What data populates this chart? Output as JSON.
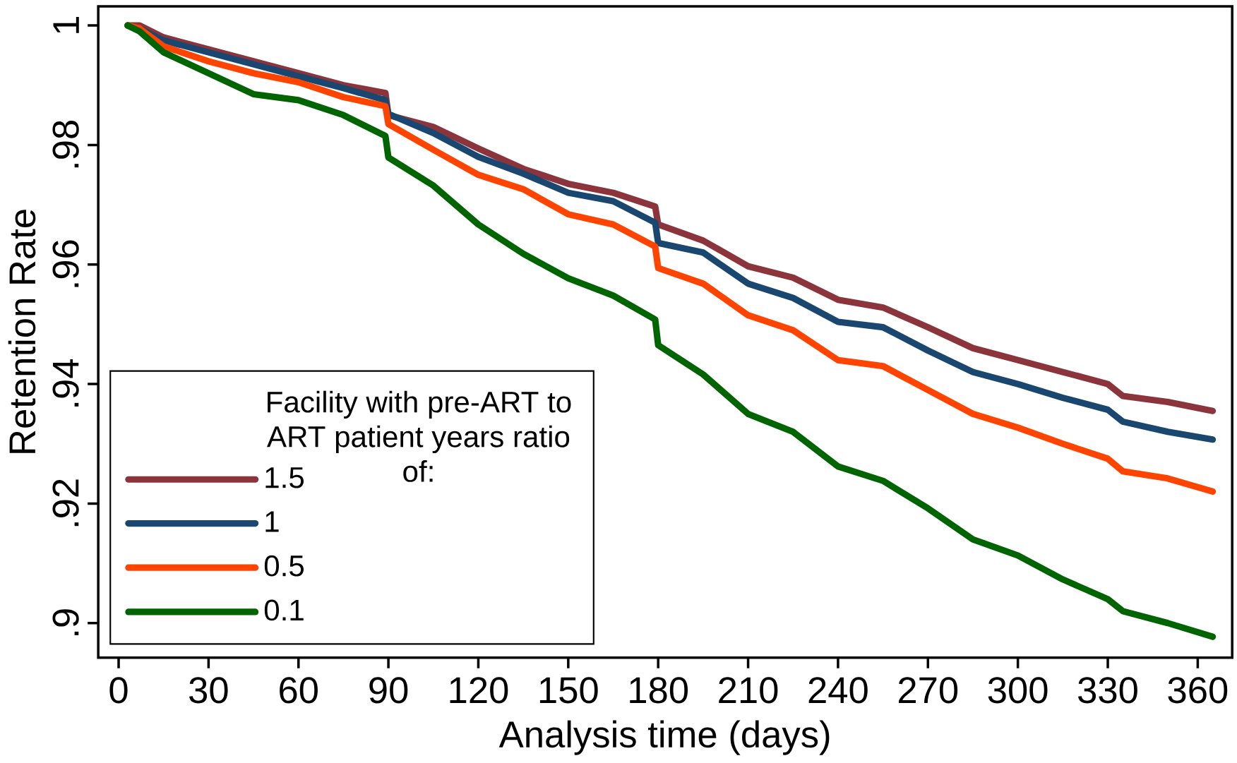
{
  "chart_data": {
    "type": "line",
    "xlabel": "Analysis time (days)",
    "ylabel": "Retention Rate",
    "legend_title": "Facility with pre-ART to ART patient years ratio of:",
    "legend": "bottom left",
    "grid": false,
    "marker": "none",
    "line_style": "solid",
    "x": [
      3,
      7,
      15,
      30,
      45,
      60,
      75,
      89,
      90,
      105,
      120,
      135,
      150,
      165,
      179,
      180,
      195,
      210,
      225,
      240,
      255,
      270,
      285,
      300,
      315,
      330,
      335,
      350,
      365
    ],
    "xlim": [
      -6.8,
      371.5
    ],
    "ylim": [
      0.8942,
      1.0032
    ],
    "xticks": [
      0,
      30,
      60,
      90,
      120,
      150,
      180,
      210,
      240,
      270,
      300,
      330,
      360
    ],
    "yticks": [
      {
        "value": 0.9,
        "label": ".9"
      },
      {
        "value": 0.92,
        "label": ".92"
      },
      {
        "value": 0.94,
        "label": ".94"
      },
      {
        "value": 0.96,
        "label": ".96"
      },
      {
        "value": 0.98,
        "label": ".98"
      },
      1
    ],
    "series": [
      {
        "name": "1.5",
        "color": "#8b343b",
        "values": [
          1.0,
          1.0,
          0.998,
          0.996,
          0.994,
          0.992,
          0.99,
          0.9887,
          0.985,
          0.983,
          0.9794,
          0.976,
          0.9735,
          0.972,
          0.9697,
          0.9667,
          0.964,
          0.9597,
          0.9578,
          0.9541,
          0.9528,
          0.9495,
          0.946,
          0.944,
          0.942,
          0.94,
          0.938,
          0.937,
          0.9355
        ]
      },
      {
        "name": "1",
        "color": "#1a476f",
        "values": [
          1.0,
          0.9995,
          0.9975,
          0.9955,
          0.9935,
          0.9915,
          0.9895,
          0.9875,
          0.9852,
          0.982,
          0.978,
          0.9752,
          0.972,
          0.9706,
          0.967,
          0.9636,
          0.962,
          0.9568,
          0.9544,
          0.9504,
          0.9495,
          0.9456,
          0.942,
          0.94,
          0.9377,
          0.9357,
          0.9337,
          0.932,
          0.9307
        ]
      },
      {
        "name": "0.5",
        "color": "#ff4400",
        "values": [
          1.0,
          0.9995,
          0.9965,
          0.994,
          0.992,
          0.9905,
          0.988,
          0.9865,
          0.9835,
          0.9792,
          0.975,
          0.9726,
          0.9684,
          0.9667,
          0.963,
          0.9594,
          0.9568,
          0.9515,
          0.949,
          0.944,
          0.943,
          0.939,
          0.935,
          0.9327,
          0.93,
          0.9275,
          0.9254,
          0.9242,
          0.922
        ]
      },
      {
        "name": "0.1",
        "color": "#006400",
        "values": [
          1.0,
          0.999,
          0.9955,
          0.992,
          0.9885,
          0.9875,
          0.985,
          0.9815,
          0.9779,
          0.9732,
          0.9667,
          0.9618,
          0.9577,
          0.9548,
          0.9508,
          0.9465,
          0.9416,
          0.935,
          0.932,
          0.9262,
          0.9238,
          0.9192,
          0.914,
          0.9113,
          0.9073,
          0.904,
          0.902,
          0.9,
          0.8977
        ]
      }
    ]
  }
}
